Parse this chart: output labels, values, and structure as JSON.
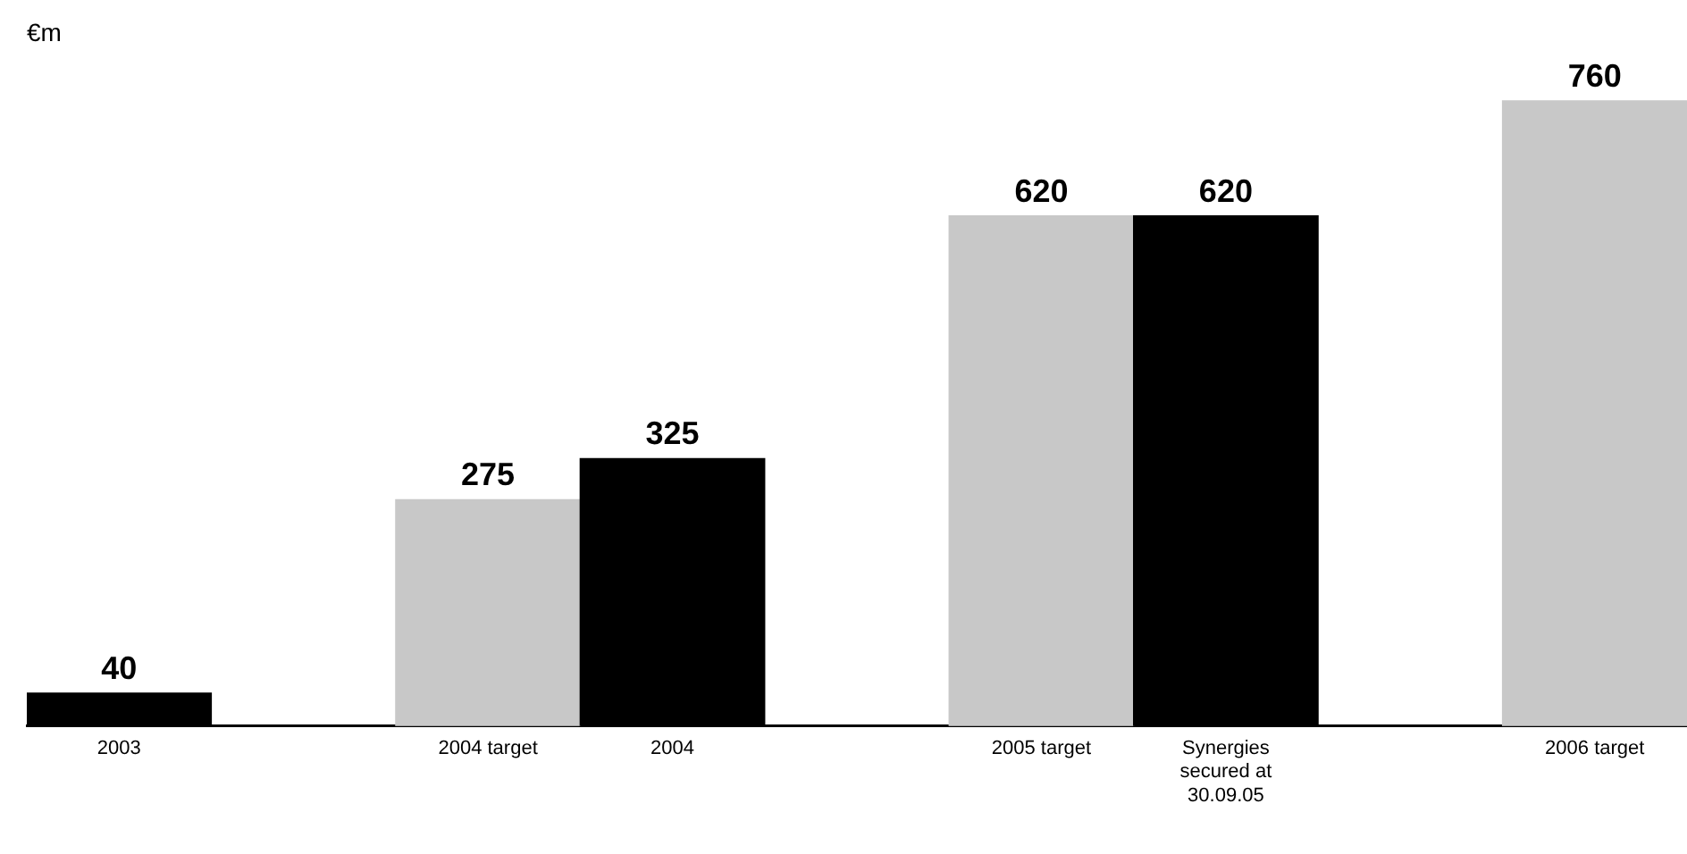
{
  "chart_data": {
    "type": "bar",
    "ylabel": "€m",
    "categories": [
      "2003",
      null,
      "2004 target",
      "2004",
      null,
      "2005 target",
      "Synergies secured at 30.09.05",
      null,
      "2006 target"
    ],
    "values": [
      40,
      null,
      275,
      325,
      null,
      620,
      620,
      null,
      760
    ],
    "colors": [
      "#000000",
      "#000000",
      "#c8c8c8",
      "#000000",
      "#000000",
      "#c8c8c8",
      "#000000",
      "#000000",
      "#c8c8c8"
    ],
    "grid": false,
    "legend": false,
    "data_labels": true,
    "tick_labels": "x"
  }
}
